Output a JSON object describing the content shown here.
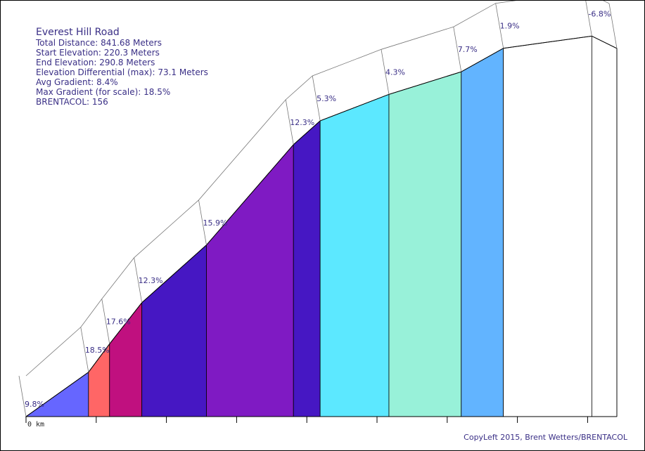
{
  "header": {
    "title": "Everest Hill Road",
    "lines": [
      "Total Distance: 841.68 Meters",
      "Start Elevation: 220.3 Meters",
      "End Elevation: 290.8 Meters",
      "Elevation Differential (max): 73.1 Meters",
      "Avg Gradient: 8.4%",
      "Max Gradient (for scale): 18.5%",
      "BRENTACOL: 156"
    ]
  },
  "footer": {
    "copyleft": "CopyLeft 2015, Brent Wetters/BRENTACOL"
  },
  "chart_data": {
    "type": "area",
    "title": "Everest Hill Road",
    "x_unit": "m",
    "x_start_label": "0 km",
    "total_distance_m": 841.68,
    "start_elevation_m": 220.3,
    "end_elevation_m": 290.8,
    "max_elevation_m": 293.4,
    "segments": [
      {
        "start_m": 0,
        "end_m": 89,
        "grade_label": "9.8%",
        "grade": 9.8,
        "color": "#6666ff"
      },
      {
        "start_m": 89,
        "end_m": 119,
        "grade_label": "18.5%",
        "grade": 18.5,
        "color": "#ff6666"
      },
      {
        "start_m": 119,
        "end_m": 165,
        "grade_label": "17.6%",
        "grade": 17.6,
        "color": "#c0107f"
      },
      {
        "start_m": 165,
        "end_m": 257,
        "grade_label": "12.3%",
        "grade": 12.3,
        "color": "#4617c3"
      },
      {
        "start_m": 257,
        "end_m": 381,
        "grade_label": "15.9%",
        "grade": 15.9,
        "color": "#7f1ac3"
      },
      {
        "start_m": 381,
        "end_m": 419,
        "grade_label": "12.3%",
        "grade": 12.3,
        "color": "#4617c3"
      },
      {
        "start_m": 419,
        "end_m": 517,
        "grade_label": "5.3%",
        "grade": 5.3,
        "color": "#5ce8ff"
      },
      {
        "start_m": 517,
        "end_m": 620,
        "grade_label": "4.3%",
        "grade": 4.3,
        "color": "#98f1d9"
      },
      {
        "start_m": 620,
        "end_m": 680,
        "grade_label": "7.7%",
        "grade": 7.7,
        "color": "#62b4ff"
      },
      {
        "start_m": 680,
        "end_m": 806,
        "grade_label": "1.9%",
        "grade": 1.9,
        "color": "#ffffff"
      },
      {
        "start_m": 806,
        "end_m": 841.68,
        "grade_label": "-6.8%",
        "grade": -6.8,
        "color": "#ffffff"
      }
    ],
    "x_ticks_m": [
      0,
      100,
      200,
      300,
      400,
      500,
      600,
      700,
      800
    ],
    "grid": false
  }
}
